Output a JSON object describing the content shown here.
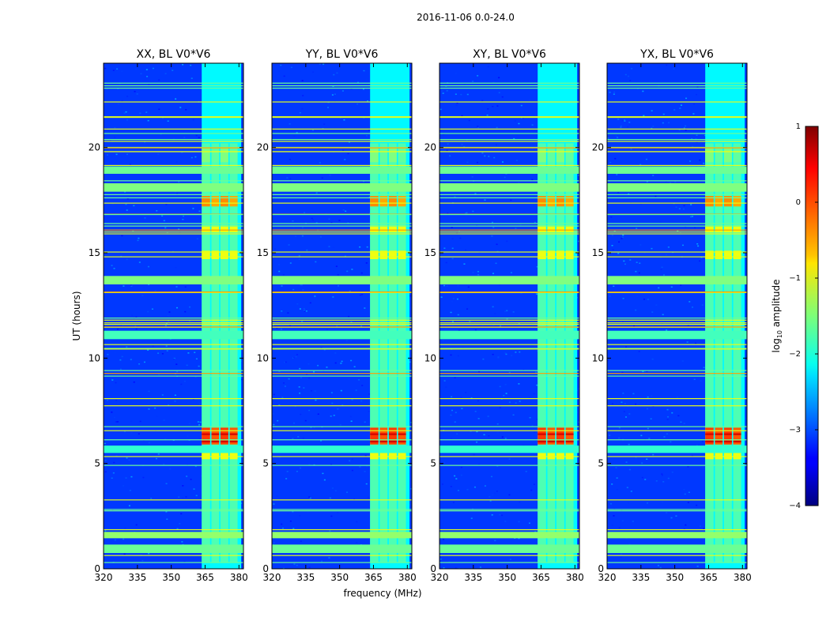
{
  "figure": {
    "suptitle": "2016-11-06 0.0-24.0",
    "ylabel": "UT (hours)",
    "xlabel": "frequency (MHz)"
  },
  "colorbar": {
    "label_prefix": "log",
    "label_sub": "10",
    "label_suffix": " amplitude",
    "ticks": [
      1,
      0,
      -1,
      -2,
      -3,
      -4
    ],
    "tick_labels": [
      "1",
      "0",
      "−1",
      "−2",
      "−3",
      "−4"
    ],
    "range": [
      -4,
      1
    ],
    "colormap": "jet"
  },
  "chart_data": {
    "type": "heatmap",
    "x": {
      "label": "frequency (MHz)",
      "range": [
        320,
        382
      ],
      "ticks": [
        320,
        335,
        350,
        365,
        380
      ]
    },
    "y": {
      "label": "UT (hours)",
      "range": [
        0,
        24
      ],
      "ticks": [
        0,
        5,
        10,
        15,
        20
      ]
    },
    "value_label": "log10 amplitude",
    "background_level": -3.1,
    "panels": [
      {
        "title": "XX, BL V0*V6",
        "pol": "XX"
      },
      {
        "title": "YY, BL V0*V6",
        "pol": "YY"
      },
      {
        "title": "XY, BL V0*V6",
        "pol": "XY"
      },
      {
        "title": "YX, BL V0*V6",
        "pol": "YX"
      }
    ],
    "rfi_band_freq_mhz": [
      363.5,
      381.0
    ],
    "rfi_subbands_mhz": [
      [
        363.5,
        367.2
      ],
      [
        367.8,
        371.2
      ],
      [
        371.8,
        375.3
      ],
      [
        375.9,
        379.4
      ]
    ],
    "horizontal_rfi_bands_hours": [
      {
        "t": [
          0.75,
          1.15
        ],
        "level": -1.6
      },
      {
        "t": [
          1.45,
          1.75
        ],
        "level": -1.4
      },
      {
        "t": [
          5.5,
          5.85
        ],
        "level": -1.9
      },
      {
        "t": [
          10.9,
          11.3
        ],
        "level": -1.8
      },
      {
        "t": [
          13.5,
          13.9
        ],
        "level": -1.5
      },
      {
        "t": [
          17.9,
          18.3
        ],
        "level": -1.5
      },
      {
        "t": [
          18.75,
          19.1
        ],
        "level": -1.6
      }
    ],
    "bright_regions": [
      {
        "t": [
          5.9,
          6.7
        ],
        "level": 0.1
      },
      {
        "t": [
          17.2,
          17.7
        ],
        "level": -0.3
      },
      {
        "t": [
          19.3,
          20.0
        ],
        "level": -1.5
      }
    ]
  }
}
